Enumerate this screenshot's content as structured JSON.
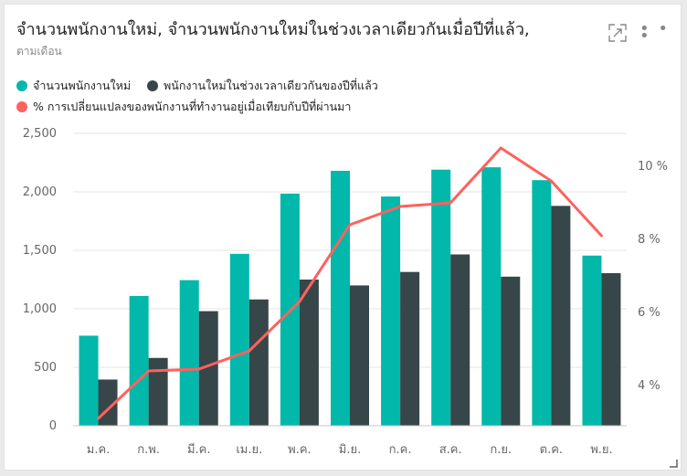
{
  "header": {
    "title": "จำนวนพนักงานใหม่, จำนวนพนักงานใหม่ในช่วงเวลาเดียวกันเมื่อปีที่แล้ว,",
    "subtitle": "ตามเดือน",
    "focus_icon": "focus-mode-icon",
    "more_icon": "more-options-icon"
  },
  "legend": [
    {
      "label": "จำนวนพนักงานใหม่",
      "color": "#01b8aa"
    },
    {
      "label": "พนักงานใหม่ในช่วงเวลาเดียวกันของปีที่แล้ว",
      "color": "#374649"
    },
    {
      "label": "% การเปลี่ยนแปลงของพนักงานที่ทำงานอยู่เมื่อเทียบกับปีที่ผ่านมา",
      "color": "#fd625e"
    }
  ],
  "chart_data": {
    "type": "bar",
    "categories": [
      "ม.ค.",
      "ก.พ.",
      "มี.ค.",
      "เม.ย.",
      "พ.ค.",
      "มิ.ย.",
      "ก.ค.",
      "ส.ค.",
      "ก.ย.",
      "ต.ค.",
      "พ.ย."
    ],
    "series": [
      {
        "name": "จำนวนพนักงานใหม่",
        "type": "bar",
        "axis": "left",
        "color": "#01b8aa",
        "values": [
          770,
          1110,
          1245,
          1470,
          1985,
          2180,
          1960,
          2190,
          2210,
          2100,
          1455
        ]
      },
      {
        "name": "พนักงานใหม่ในช่วงเวลาเดียวกันของปีที่แล้ว",
        "type": "bar",
        "axis": "left",
        "color": "#374649",
        "values": [
          395,
          580,
          980,
          1080,
          1250,
          1200,
          1315,
          1465,
          1275,
          1880,
          1305
        ]
      },
      {
        "name": "% การเปลี่ยนแปลงของพนักงานที่ทำงานอยู่เมื่อเทียบกับปีที่ผ่านมา",
        "type": "line",
        "axis": "right",
        "color": "#fd625e",
        "values": [
          3.1,
          4.4,
          4.45,
          4.95,
          6.3,
          8.4,
          8.9,
          9.0,
          10.5,
          9.6,
          8.1
        ]
      }
    ],
    "y_left": {
      "min": 0,
      "max": 2500,
      "ticks": [
        0,
        500,
        1000,
        1500,
        2000,
        2500
      ],
      "tick_labels": [
        "0",
        "500",
        "1,000",
        "1,500",
        "2,000",
        "2,500"
      ]
    },
    "y_right": {
      "min": 2.9,
      "max": 10.9,
      "ticks": [
        4,
        6,
        8,
        10
      ],
      "tick_labels": [
        "4 %",
        "6 %",
        "8 %",
        "10 %"
      ]
    },
    "grid": true,
    "legend_position": "top-left"
  }
}
